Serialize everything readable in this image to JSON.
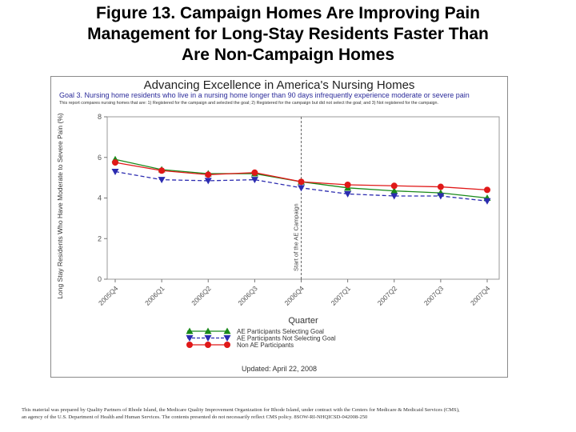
{
  "slide": {
    "title_lines": [
      "Figure 13. Campaign Homes Are Improving Pain",
      "Management for Long-Stay Residents Faster Than",
      "Are Non-Campaign Homes"
    ],
    "footer_lines": [
      "This material was prepared by Quality Partners of Rhode Island, the Medicare Quality Improvement Organization for Rhode Island, under contract with the Centers for Medicare & Medicaid Services (CMS),",
      "an agency of the U.S. Department of Health and Human Services. The contents presented do not necessarily reflect CMS policy. 8SOW-RI-NHQICSD-042008-250"
    ]
  },
  "figure": {
    "title": "Advancing Excellence in America's Nursing Homes",
    "goal": "Goal 3. Nursing home residents who live in a nursing home longer than 90 days infrequently experience moderate or severe pain",
    "note": "This report compares nursing homes that are: 1) Registered for the campaign and selected the goal; 2) Registered for the campaign but did not select the goal; and 3) Not registered for the campaign.",
    "updated": "Updated: April 22, 2008"
  },
  "chart_data": {
    "type": "line",
    "xlabel": "Quarter",
    "ylabel": "Long Stay Residents Who Have Moderate to Severe Pain (%)",
    "categories": [
      "2005Q4",
      "2006Q1",
      "2006Q2",
      "2006Q3",
      "2006Q4",
      "2007Q1",
      "2007Q2",
      "2007Q3",
      "2007Q4"
    ],
    "ylim": [
      0,
      8
    ],
    "yticks": [
      0,
      2,
      4,
      6,
      8
    ],
    "grid": false,
    "legend_position": "bottom-center",
    "annotation": {
      "label": "Start of the AE Campaign",
      "at_category": "2006Q4",
      "style": "dashed-vertical"
    },
    "series": [
      {
        "name": "AE Participants Selecting Goal",
        "color": "#1a8a1a",
        "marker": "triangle-up",
        "line_style": "solid",
        "values": [
          5.9,
          5.4,
          5.2,
          5.2,
          4.8,
          4.5,
          4.35,
          4.25,
          4.0
        ]
      },
      {
        "name": "AE Participants Not Selecting Goal",
        "color": "#2b2bb0",
        "marker": "triangle-down",
        "line_style": "dashed",
        "values": [
          5.3,
          4.9,
          4.85,
          4.9,
          4.5,
          4.2,
          4.1,
          4.1,
          3.85
        ]
      },
      {
        "name": "Non AE Participants",
        "color": "#e01818",
        "marker": "circle",
        "line_style": "solid",
        "values": [
          5.75,
          5.35,
          5.15,
          5.25,
          4.8,
          4.65,
          4.6,
          4.55,
          4.4
        ]
      }
    ]
  }
}
